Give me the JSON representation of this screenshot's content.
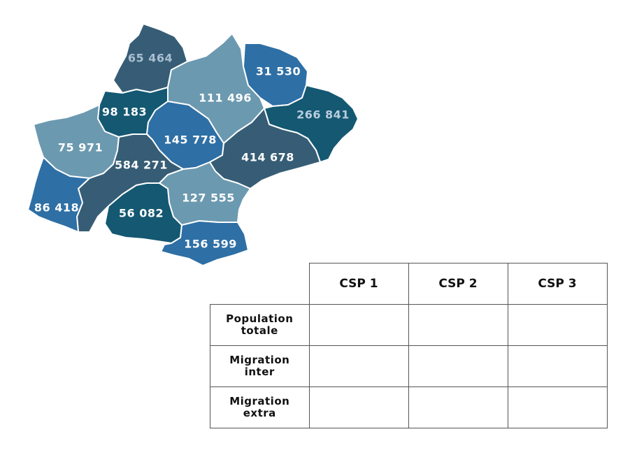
{
  "map": {
    "regions": [
      {
        "name": "region-65464",
        "label": "65 464",
        "color": "#365d75",
        "label_color": "#a9bfd1"
      },
      {
        "name": "region-111496",
        "label": "111 496",
        "color": "#6b99b0",
        "label_color": "#ffffff"
      },
      {
        "name": "region-31530",
        "label": "31 530",
        "color": "#2e6fa5",
        "label_color": "#ffffff"
      },
      {
        "name": "region-98183",
        "label": "98 183",
        "color": "#145872",
        "label_color": "#ffffff"
      },
      {
        "name": "region-145778",
        "label": "145 778",
        "color": "#2e6fa5",
        "label_color": "#ffffff"
      },
      {
        "name": "region-266841",
        "label": "266 841",
        "color": "#145872",
        "label_color": "#b9cddd"
      },
      {
        "name": "region-75971",
        "label": "75 971",
        "color": "#6b99b0",
        "label_color": "#ffffff"
      },
      {
        "name": "region-584271",
        "label": "584 271",
        "color": "#365d75",
        "label_color": "#ffffff"
      },
      {
        "name": "region-414678",
        "label": "414 678",
        "color": "#365d75",
        "label_color": "#ffffff"
      },
      {
        "name": "region-86418",
        "label": "86 418",
        "color": "#2e6fa5",
        "label_color": "#ffffff"
      },
      {
        "name": "region-127555",
        "label": "127 555",
        "color": "#6b99b0",
        "label_color": "#ffffff"
      },
      {
        "name": "region-56082",
        "label": "56 082",
        "color": "#145872",
        "label_color": "#ffffff"
      },
      {
        "name": "region-156599",
        "label": "156 599",
        "color": "#2e6fa5",
        "label_color": "#ffffff"
      }
    ]
  },
  "table": {
    "columns": [
      "CSP 1",
      "CSP 2",
      "CSP 3"
    ],
    "rows": [
      {
        "label_line1": "Population",
        "label_line2": "totale"
      },
      {
        "label_line1": "Migration",
        "label_line2": "inter"
      },
      {
        "label_line1": "Migration",
        "label_line2": "extra"
      }
    ]
  }
}
